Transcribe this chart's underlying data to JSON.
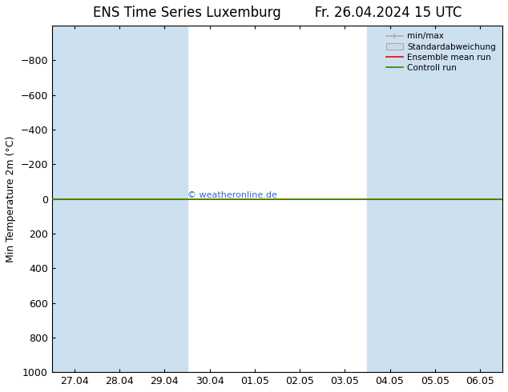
{
  "title": "ENS Time Series Luxemburg",
  "title_right": "Fr. 26.04.2024 15 UTC",
  "ylabel": "Min Temperature 2m (°C)",
  "ylim_top": -1000,
  "ylim_bottom": 1000,
  "yticks": [
    -800,
    -600,
    -400,
    -200,
    0,
    200,
    400,
    600,
    800,
    1000
  ],
  "xtick_labels": [
    "27.04",
    "28.04",
    "29.04",
    "30.04",
    "01.05",
    "02.05",
    "03.05",
    "04.05",
    "05.05",
    "06.05"
  ],
  "xtick_positions": [
    0,
    1,
    2,
    3,
    4,
    5,
    6,
    7,
    8,
    9
  ],
  "shaded_bands": [
    [
      0,
      1
    ],
    [
      1,
      2
    ],
    [
      2,
      3
    ],
    [
      7,
      8
    ],
    [
      8,
      9
    ],
    [
      9,
      10
    ]
  ],
  "shaded_color": "#cce0f0",
  "bg_color": "#ffffff",
  "watermark": "© weatheronline.de",
  "watermark_color": "#3366cc",
  "line_green_color": "#338800",
  "line_red_color": "#ff0000",
  "legend_items": [
    "min/max",
    "Standardabweichung",
    "Ensemble mean run",
    "Controll run"
  ],
  "legend_line_color": "#aaaaaa",
  "legend_rect_color": "#c8dce8",
  "legend_red_color": "#ff0000",
  "legend_green_color": "#338800",
  "font_size": 9,
  "title_fontsize": 12
}
